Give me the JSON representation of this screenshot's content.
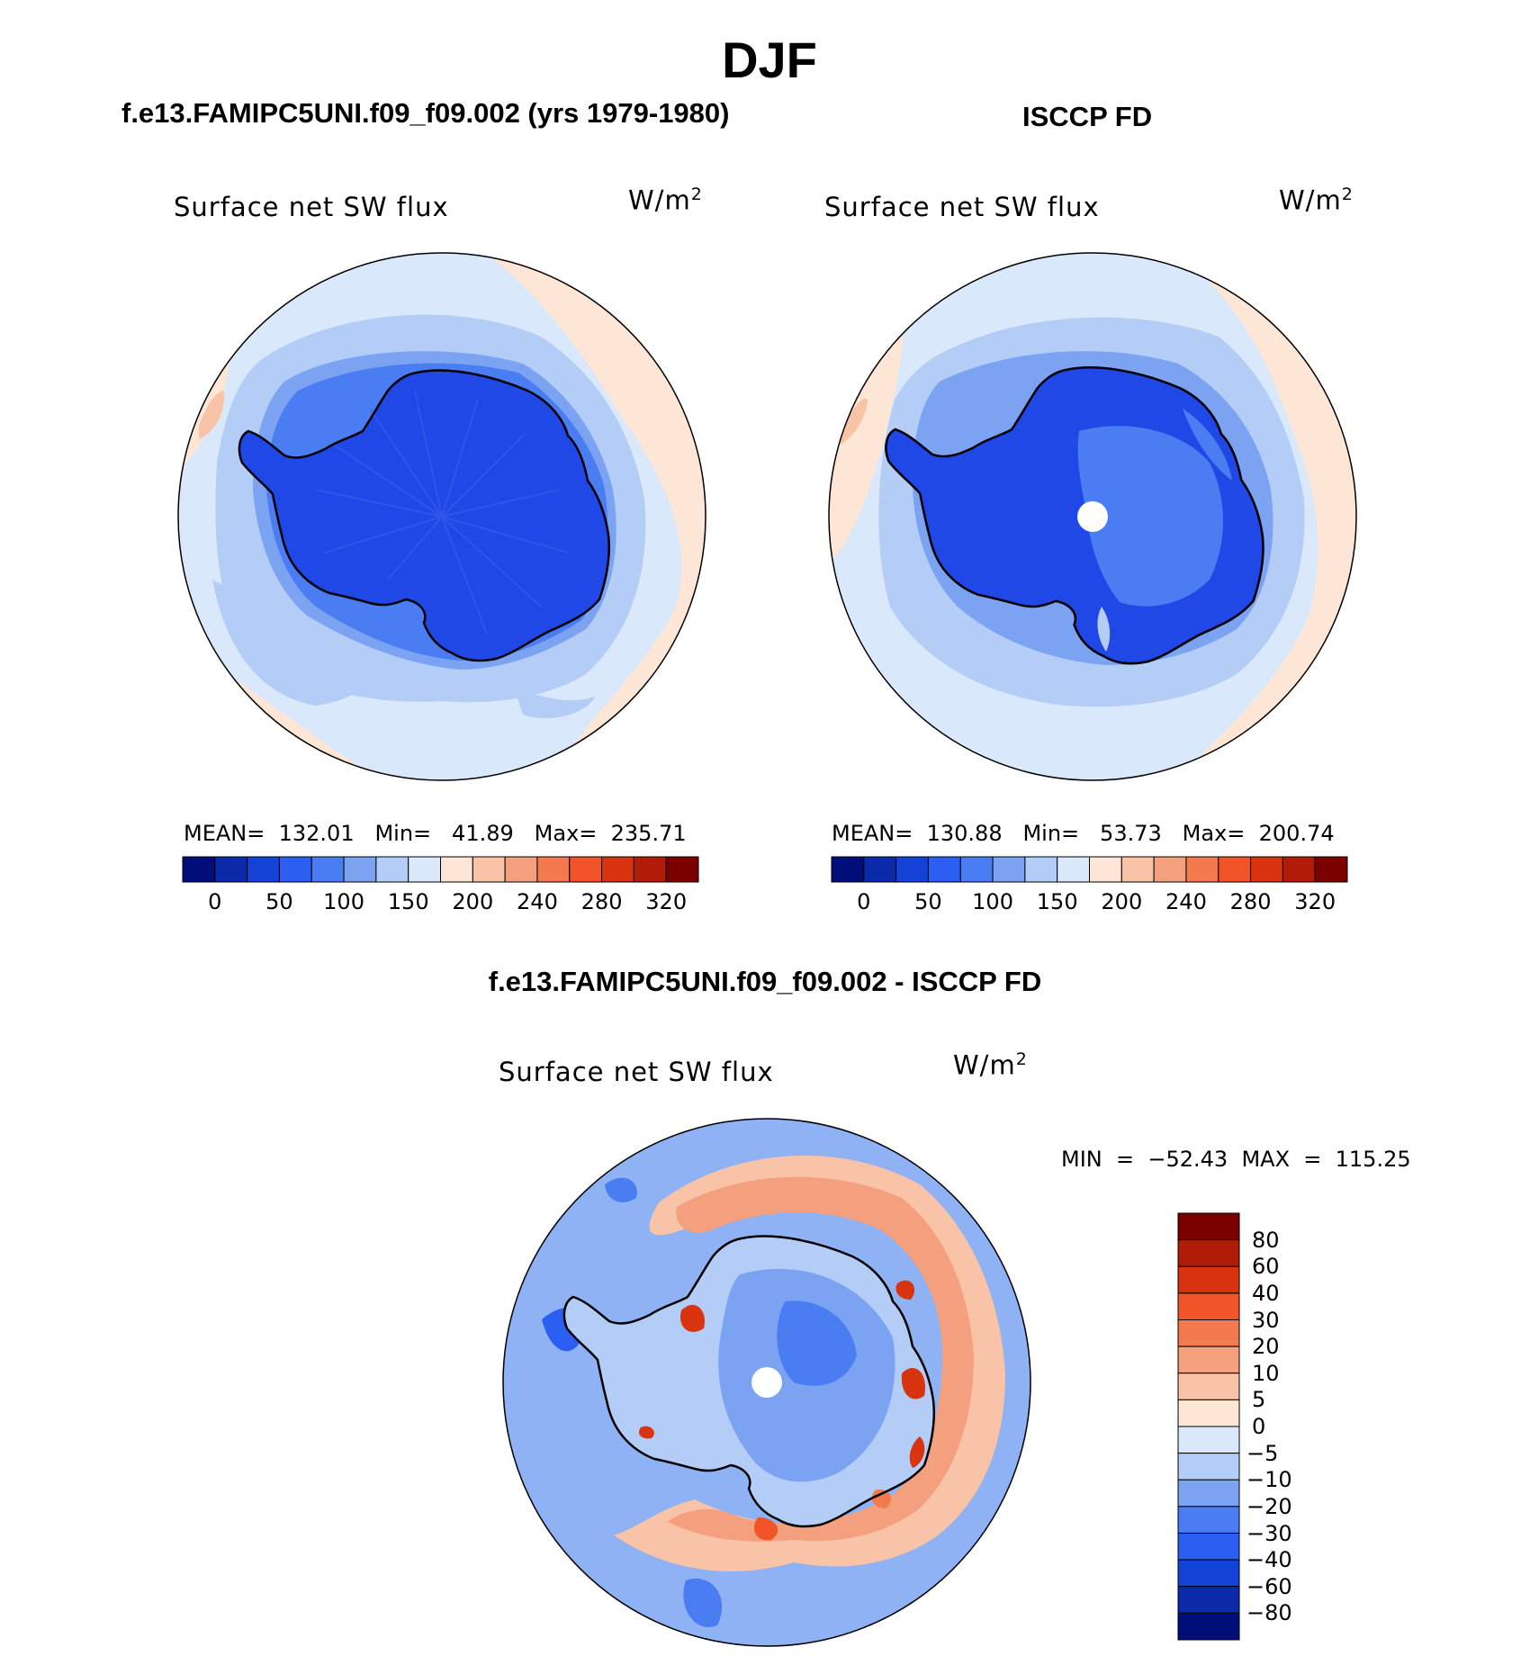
{
  "title": "DJF",
  "panels": {
    "model": {
      "title": "f.e13.FAMIPC5UNI.f09_f09.002 (yrs 1979-1980)",
      "variable": "Surface net SW flux",
      "units_base": "W/m",
      "units_exp": "2",
      "stats": "MEAN=  132.01   Min=   41.89   Max=  235.71"
    },
    "obs": {
      "title": "ISCCP FD",
      "variable": "Surface net SW flux",
      "units_base": "W/m",
      "units_exp": "2",
      "stats": "MEAN=  130.88   Min=   53.73   Max=  200.74"
    },
    "diff": {
      "title": "f.e13.FAMIPC5UNI.f09_f09.002 - ISCCP FD",
      "variable": "Surface net SW flux",
      "units_base": "W/m",
      "units_exp": "2",
      "stats": "MIN  =  −52.43  MAX  =  115.25"
    }
  },
  "chart_data": [
    {
      "type": "heatmap",
      "projection": "south polar stereographic",
      "title": "f.e13.FAMIPC5UNI.f09_f09.002 (yrs 1979-1980)",
      "variable": "Surface net SW flux",
      "units": "W/m2",
      "mean": 132.01,
      "min": 41.89,
      "max": 235.71,
      "colorbar_ticks": [
        "0",
        "50",
        "100",
        "150",
        "200",
        "240",
        "280",
        "320"
      ],
      "colorbar_colors": [
        "#000e7a",
        "#0a2aaa",
        "#1442d6",
        "#2b5ff2",
        "#4a7df2",
        "#7ba3f2",
        "#b3cdf7",
        "#d9e8fb",
        "#fde6d6",
        "#f9c3a8",
        "#f4a07e",
        "#f27a4e",
        "#f05428",
        "#d8340f",
        "#b01c08",
        "#7a0000"
      ]
    },
    {
      "type": "heatmap",
      "projection": "south polar stereographic",
      "title": "ISCCP FD",
      "variable": "Surface net SW flux",
      "units": "W/m2",
      "mean": 130.88,
      "min": 53.73,
      "max": 200.74,
      "colorbar_ticks": [
        "0",
        "50",
        "100",
        "150",
        "200",
        "240",
        "280",
        "320"
      ],
      "colorbar_colors": [
        "#000e7a",
        "#0a2aaa",
        "#1442d6",
        "#2b5ff2",
        "#4a7df2",
        "#7ba3f2",
        "#b3cdf7",
        "#d9e8fb",
        "#fde6d6",
        "#f9c3a8",
        "#f4a07e",
        "#f27a4e",
        "#f05428",
        "#d8340f",
        "#b01c08",
        "#7a0000"
      ]
    },
    {
      "type": "heatmap",
      "projection": "south polar stereographic",
      "title": "f.e13.FAMIPC5UNI.f09_f09.002 - ISCCP FD",
      "variable": "Surface net SW flux",
      "units": "W/m2",
      "min": -52.43,
      "max": 115.25,
      "colorbar_ticks": [
        "80",
        "60",
        "40",
        "30",
        "20",
        "10",
        "5",
        "0",
        "−5",
        "−10",
        "−20",
        "−30",
        "−40",
        "−60",
        "−80"
      ],
      "colorbar_colors": [
        "#7a0000",
        "#b01c08",
        "#d8340f",
        "#f05428",
        "#f27a4e",
        "#f4a07e",
        "#f9c3a8",
        "#fde6d6",
        "#d9e8fb",
        "#b3cdf7",
        "#7ba3f2",
        "#4a7df2",
        "#2b5ff2",
        "#1442d6",
        "#0a2aaa",
        "#000e7a"
      ]
    }
  ]
}
